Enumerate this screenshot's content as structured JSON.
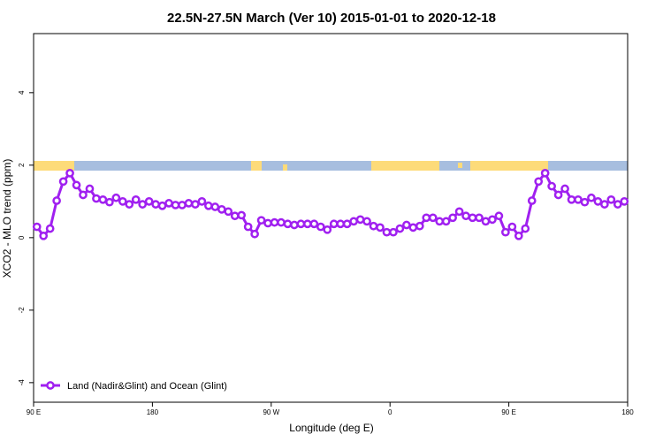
{
  "chart_data": {
    "type": "line",
    "title": "22.5N-27.5N March (Ver 10)   2015-01-01 to 2020-12-18",
    "x_label": "Longitude (deg E)",
    "y_label": "XCO2 - MLO trend (ppm)",
    "x": [
      92.5,
      97.5,
      102.5,
      107.5,
      112.5,
      117.5,
      122.5,
      127.5,
      132.5,
      137.5,
      142.5,
      147.5,
      152.5,
      157.5,
      162.5,
      167.5,
      172.5,
      177.5,
      182.5,
      187.5,
      192.5,
      197.5,
      202.5,
      207.5,
      212.5,
      217.5,
      222.5,
      227.5,
      232.5,
      237.5,
      242.5,
      247.5,
      252.5,
      257.5,
      262.5,
      267.5,
      272.5,
      277.5,
      282.5,
      287.5,
      292.5,
      297.5,
      302.5,
      307.5,
      312.5,
      317.5,
      322.5,
      327.5,
      332.5,
      337.5,
      342.5,
      347.5,
      352.5,
      357.5,
      362.5,
      367.5,
      372.5,
      377.5,
      382.5,
      387.5,
      392.5,
      397.5,
      402.5,
      407.5,
      412.5,
      417.5,
      422.5,
      427.5,
      432.5,
      437.5,
      442.5,
      447.5,
      452.5,
      457.5,
      462.5,
      467.5,
      472.5,
      477.5,
      482.5,
      487.5,
      492.5,
      497.5,
      502.5,
      507.5,
      512.5,
      517.5,
      522.5,
      527.5,
      532.5,
      537.5
    ],
    "series": [
      {
        "name": "Land (Nadir&Glint) and Ocean (Glint)",
        "color": "#a020f0",
        "values": [
          0.3,
          0.05,
          0.25,
          1.02,
          1.55,
          1.78,
          1.45,
          1.18,
          1.35,
          1.08,
          1.05,
          0.98,
          1.1,
          1.0,
          0.92,
          1.05,
          0.92,
          1.0,
          0.92,
          0.88,
          0.95,
          0.9,
          0.9,
          0.95,
          0.92,
          1.0,
          0.88,
          0.85,
          0.78,
          0.72,
          0.6,
          0.62,
          0.3,
          0.1,
          0.48,
          0.4,
          0.42,
          0.42,
          0.38,
          0.35,
          0.38,
          0.38,
          0.38,
          0.3,
          0.22,
          0.38,
          0.38,
          0.38,
          0.45,
          0.5,
          0.45,
          0.32,
          0.28,
          0.15,
          0.15,
          0.25,
          0.35,
          0.28,
          0.32,
          0.55,
          0.55,
          0.45,
          0.45,
          0.55,
          0.72,
          0.6,
          0.55,
          0.55,
          0.45,
          0.5,
          0.6,
          0.15,
          0.3,
          0.05,
          0.25,
          1.02,
          1.55,
          1.78,
          1.42,
          1.18,
          1.35,
          1.05,
          1.05,
          0.98,
          1.1,
          1.0,
          0.92,
          1.05,
          0.92,
          1.0
        ]
      }
    ],
    "xlim": [
      90,
      540
    ],
    "xticks": [
      {
        "value": 90,
        "label": "90 E"
      },
      {
        "value": 180,
        "label": "180"
      },
      {
        "value": 270,
        "label": "90 W"
      },
      {
        "value": 360,
        "label": "0"
      },
      {
        "value": 450,
        "label": "90 E"
      },
      {
        "value": 540,
        "label": "180"
      }
    ],
    "ylim": [
      -4.54,
      5.63
    ],
    "yticks": [
      -4,
      -2,
      0,
      2,
      4
    ],
    "legend": "bottom-left"
  }
}
